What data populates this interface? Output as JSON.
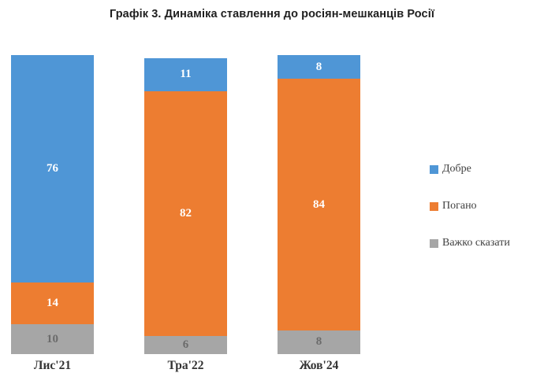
{
  "title": "Графік 3. Динаміка ставлення до росіян-мешканців Росії",
  "chart_data": {
    "type": "bar",
    "stacked": true,
    "title": "Графік 3. Динаміка ставлення до росіян-мешканців Росії",
    "categories": [
      "Лис'21",
      "Тра'22",
      "Жов'24"
    ],
    "series": [
      {
        "name": "Добре",
        "color": "#4F96D6",
        "label_color": "#ffffff",
        "values": [
          76,
          11,
          8
        ]
      },
      {
        "name": "Погано",
        "color": "#ED7D31",
        "label_color": "#ffffff",
        "values": [
          14,
          82,
          84
        ]
      },
      {
        "name": "Важко сказати",
        "color": "#A6A6A6",
        "label_color": "#6b6b6b",
        "values": [
          10,
          6,
          8
        ]
      }
    ],
    "ylim": [
      0,
      100
    ],
    "grid": false,
    "legend_position": "right",
    "xlabel": "",
    "ylabel": ""
  }
}
